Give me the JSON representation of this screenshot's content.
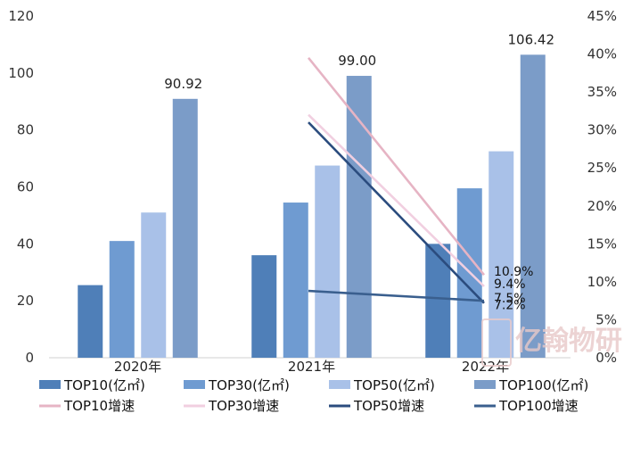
{
  "chart_data": {
    "type": "bar",
    "categories": [
      "2020年",
      "2021年",
      "2022年"
    ],
    "series": [
      {
        "name": "TOP10(亿㎡)",
        "values": [
          25.5,
          36.0,
          40.0
        ],
        "color": "#4f7fb8"
      },
      {
        "name": "TOP30(亿㎡)",
        "values": [
          41.0,
          54.5,
          59.5
        ],
        "color": "#6f9bd1"
      },
      {
        "name": "TOP50(亿㎡)",
        "values": [
          51.0,
          67.5,
          72.5
        ],
        "color": "#a9c1e8"
      },
      {
        "name": "TOP100(亿㎡)",
        "values": [
          90.92,
          99.0,
          106.42
        ],
        "color": "#7b9cc8"
      }
    ],
    "growth_series": [
      {
        "name": "TOP10增速",
        "values": [
          null,
          39.5,
          10.9
        ],
        "color": "#e6b4c4"
      },
      {
        "name": "TOP30增速",
        "values": [
          null,
          32.0,
          9.4
        ],
        "color": "#f1cfe0"
      },
      {
        "name": "TOP50增速",
        "values": [
          null,
          31.0,
          7.2
        ],
        "color": "#2b4c7e"
      },
      {
        "name": "TOP100增速",
        "values": [
          null,
          8.8,
          7.5
        ],
        "color": "#3a5f8e"
      }
    ],
    "data_labels": {
      "top100": [
        "90.92",
        "99.00",
        "106.42"
      ],
      "growth_2022": [
        "10.9%",
        "9.4%",
        "7.5%",
        "7.2%"
      ]
    },
    "y_left": {
      "ticks": [
        "0",
        "20",
        "40",
        "60",
        "80",
        "100",
        "120"
      ],
      "min": 0,
      "max": 120
    },
    "y_right": {
      "ticks": [
        "0%",
        "5%",
        "10%",
        "15%",
        "20%",
        "25%",
        "30%",
        "35%",
        "40%",
        "45%"
      ],
      "min": 0,
      "max": 45
    }
  },
  "watermark": {
    "text": "亿翰物研"
  }
}
